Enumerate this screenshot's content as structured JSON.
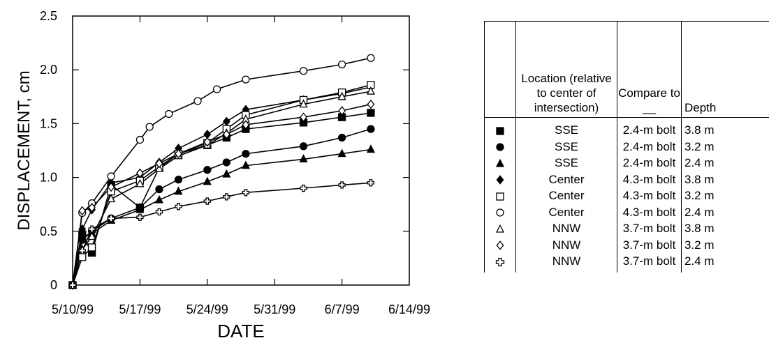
{
  "chart_data": {
    "type": "line",
    "xlabel": "DATE",
    "ylabel": "DISPLACEMENT, cm",
    "xlim": [
      "1999-05-10",
      "1999-06-14"
    ],
    "ylim": [
      0,
      2.5
    ],
    "xticks": [
      "1999-05-10",
      "1999-05-17",
      "1999-05-24",
      "1999-05-31",
      "1999-06-07",
      "1999-06-14"
    ],
    "xtick_labels": [
      "5/10/99",
      "5/17/99",
      "5/24/99",
      "5/31/99",
      "6/7/99",
      "6/14/99"
    ],
    "yticks": [
      0,
      0.5,
      1.0,
      1.5,
      2.0,
      2.5
    ],
    "ytick_labels": [
      "0",
      "0.5",
      "1.0",
      "1.5",
      "2.0",
      "2.5"
    ],
    "grid": false,
    "legend": "table at right",
    "series": [
      {
        "marker": "filled-square",
        "location": "SSE",
        "compare": "2.4-m bolt",
        "depth": "3.8 m",
        "x": [
          "1999-05-10",
          "1999-05-11",
          "1999-05-12",
          "1999-05-14",
          "1999-05-17",
          "1999-05-19",
          "1999-05-21",
          "1999-05-24",
          "1999-05-26",
          "1999-05-28",
          "1999-06-03",
          "1999-06-07",
          "1999-06-10"
        ],
        "y": [
          0,
          0.47,
          0.3,
          0.93,
          0.72,
          1.09,
          1.22,
          1.3,
          1.37,
          1.45,
          1.51,
          1.56,
          1.6
        ]
      },
      {
        "marker": "filled-circle",
        "location": "SSE",
        "compare": "2.4-m bolt",
        "depth": "3.2 m",
        "x": [
          "1999-05-10",
          "1999-05-11",
          "1999-05-12",
          "1999-05-14",
          "1999-05-17",
          "1999-05-19",
          "1999-05-21",
          "1999-05-24",
          "1999-05-26",
          "1999-05-28",
          "1999-06-03",
          "1999-06-07",
          "1999-06-10"
        ],
        "y": [
          0,
          0.42,
          0.5,
          0.62,
          0.72,
          0.89,
          0.98,
          1.07,
          1.14,
          1.22,
          1.29,
          1.37,
          1.45
        ]
      },
      {
        "marker": "filled-triangle",
        "location": "SSE",
        "compare": "2.4-m bolt",
        "depth": "2.4 m",
        "x": [
          "1999-05-10",
          "1999-05-11",
          "1999-05-12",
          "1999-05-14",
          "1999-05-17",
          "1999-05-19",
          "1999-05-21",
          "1999-05-24",
          "1999-05-26",
          "1999-05-28",
          "1999-06-03",
          "1999-06-07",
          "1999-06-10"
        ],
        "y": [
          0,
          0.45,
          0.48,
          0.6,
          0.7,
          0.79,
          0.87,
          0.96,
          1.03,
          1.11,
          1.17,
          1.22,
          1.26
        ]
      },
      {
        "marker": "filled-diamond",
        "location": "Center",
        "compare": "4.3-m bolt",
        "depth": "3.8 m",
        "x": [
          "1999-05-10",
          "1999-05-11",
          "1999-05-12",
          "1999-05-14",
          "1999-05-17",
          "1999-05-19",
          "1999-05-21",
          "1999-05-24",
          "1999-05-26",
          "1999-05-28",
          "1999-06-03",
          "1999-06-07",
          "1999-06-10"
        ],
        "y": [
          0,
          0.52,
          0.7,
          0.95,
          1.0,
          1.14,
          1.27,
          1.4,
          1.52,
          1.63,
          1.72,
          1.78,
          1.84
        ]
      },
      {
        "marker": "open-square",
        "location": "Center",
        "compare": "4.3-m bolt",
        "depth": "3.2 m",
        "x": [
          "1999-05-10",
          "1999-05-11",
          "1999-05-12",
          "1999-05-14",
          "1999-05-17",
          "1999-05-19",
          "1999-05-21",
          "1999-05-24",
          "1999-05-26",
          "1999-05-28",
          "1999-06-03",
          "1999-06-07",
          "1999-06-10"
        ],
        "y": [
          0,
          0.26,
          0.35,
          0.87,
          0.97,
          1.1,
          1.22,
          1.32,
          1.45,
          1.58,
          1.72,
          1.79,
          1.86
        ]
      },
      {
        "marker": "open-circle",
        "location": "Center",
        "compare": "4.3-m bolt",
        "depth": "2.4 m",
        "x": [
          "1999-05-10",
          "1999-05-11",
          "1999-05-12",
          "1999-05-14",
          "1999-05-17",
          "1999-05-18",
          "1999-05-20",
          "1999-05-23",
          "1999-05-25",
          "1999-05-28",
          "1999-06-03",
          "1999-06-07",
          "1999-06-10"
        ],
        "y": [
          0,
          0.67,
          0.76,
          1.01,
          1.35,
          1.47,
          1.59,
          1.71,
          1.82,
          1.91,
          1.99,
          2.05,
          2.11
        ]
      },
      {
        "marker": "open-triangle",
        "location": "NNW",
        "compare": "3.7-m bolt",
        "depth": "3.8 m",
        "x": [
          "1999-05-10",
          "1999-05-11",
          "1999-05-12",
          "1999-05-14",
          "1999-05-17",
          "1999-05-19",
          "1999-05-21",
          "1999-05-24",
          "1999-05-26",
          "1999-05-28",
          "1999-06-03",
          "1999-06-07",
          "1999-06-10"
        ],
        "y": [
          0,
          0.33,
          0.45,
          0.8,
          0.94,
          1.08,
          1.2,
          1.3,
          1.41,
          1.54,
          1.68,
          1.75,
          1.8
        ]
      },
      {
        "marker": "open-diamond",
        "location": "NNW",
        "compare": "3.7-m bolt",
        "depth": "3.2 m",
        "x": [
          "1999-05-10",
          "1999-05-11",
          "1999-05-12",
          "1999-05-14",
          "1999-05-17",
          "1999-05-19",
          "1999-05-21",
          "1999-05-24",
          "1999-05-26",
          "1999-05-28",
          "1999-06-03",
          "1999-06-07",
          "1999-06-10"
        ],
        "y": [
          0,
          0.69,
          0.72,
          0.91,
          1.04,
          1.13,
          1.22,
          1.33,
          1.4,
          1.49,
          1.56,
          1.62,
          1.68
        ]
      },
      {
        "marker": "open-cross",
        "location": "NNW",
        "compare": "3.7-m bolt",
        "depth": "2.4 m",
        "x": [
          "1999-05-10",
          "1999-05-11",
          "1999-05-12",
          "1999-05-14",
          "1999-05-17",
          "1999-05-19",
          "1999-05-21",
          "1999-05-24",
          "1999-05-26",
          "1999-05-28",
          "1999-06-03",
          "1999-06-07",
          "1999-06-10"
        ],
        "y": [
          0,
          0.32,
          0.52,
          0.62,
          0.63,
          0.68,
          0.73,
          0.78,
          0.82,
          0.86,
          0.9,
          0.93,
          0.95
        ]
      }
    ],
    "table": {
      "headers": [
        "",
        "Location (relative to center of intersection)",
        "Compare to __",
        "Depth"
      ]
    }
  }
}
